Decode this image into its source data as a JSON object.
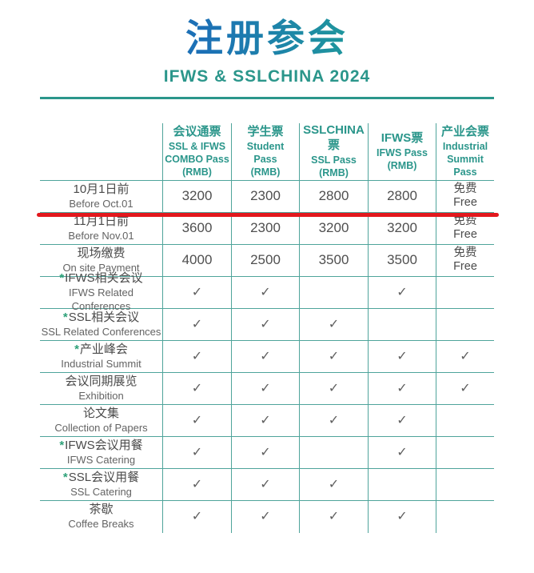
{
  "page": {
    "title": "注册参会",
    "subtitle": "IFWS & SSLCHINA 2024"
  },
  "colors": {
    "title_gradient_start": "#1C70B6",
    "title_gradient_end": "#2EAC87",
    "teal_text": "#2B968B",
    "grid_line": "#4FA49B",
    "red_strike_line": "#E2181D",
    "label_text": "#4A4A4A",
    "secondary_text": "#636363",
    "asterisk": "#2EA179"
  },
  "table": {
    "star_glyph": "*",
    "check_glyph": "✓",
    "header": [
      {
        "zh": "会议通票",
        "en": "SSL & IFWS\nCOMBO Pass\n(RMB)"
      },
      {
        "zh": "学生票",
        "en": "Student\nPass\n(RMB)"
      },
      {
        "zh": "SSLCHINA\n票",
        "en": "SSL Pass\n(RMB)"
      },
      {
        "zh": "IFWS票",
        "en": "IFWS Pass\n(RMB)"
      },
      {
        "zh": "产业会票",
        "en": "Industrial\nSummit\nPass"
      }
    ],
    "rows": [
      {
        "star": false,
        "strike": true,
        "zh": "10月1日前",
        "en": "Before Oct.01",
        "cells": [
          "3200",
          "2300",
          "2800",
          "2800",
          "免费\nFree"
        ]
      },
      {
        "star": false,
        "strike": false,
        "zh": "11月1日前",
        "en": "Before Nov.01",
        "cells": [
          "3600",
          "2300",
          "3200",
          "3200",
          "免费\nFree"
        ]
      },
      {
        "star": false,
        "strike": false,
        "zh": "现场缴费",
        "en": "On site Payment",
        "cells": [
          "4000",
          "2500",
          "3500",
          "3500",
          "免费\nFree"
        ]
      },
      {
        "star": true,
        "strike": false,
        "zh": "IFWS相关会议",
        "en": "IFWS Related Conferences",
        "cells": [
          "✓",
          "✓",
          "",
          "✓",
          ""
        ]
      },
      {
        "star": true,
        "strike": false,
        "zh": "SSL相关会议",
        "en": "SSL Related Conferences",
        "cells": [
          "✓",
          "✓",
          "✓",
          "",
          ""
        ]
      },
      {
        "star": true,
        "strike": false,
        "zh": "产业峰会",
        "en": "Industrial Summit",
        "cells": [
          "✓",
          "✓",
          "✓",
          "✓",
          "✓"
        ]
      },
      {
        "star": false,
        "strike": false,
        "zh": "会议同期展览",
        "en": "Exhibition",
        "cells": [
          "✓",
          "✓",
          "✓",
          "✓",
          "✓"
        ]
      },
      {
        "star": false,
        "strike": false,
        "zh": "论文集",
        "en": "Collection of Papers",
        "cells": [
          "✓",
          "✓",
          "✓",
          "✓",
          ""
        ]
      },
      {
        "star": true,
        "strike": false,
        "zh": "IFWS会议用餐",
        "en": "IFWS Catering",
        "cells": [
          "✓",
          "✓",
          "",
          "✓",
          ""
        ]
      },
      {
        "star": true,
        "strike": false,
        "zh": "SSL会议用餐",
        "en": "SSL Catering",
        "cells": [
          "✓",
          "✓",
          "✓",
          "",
          ""
        ]
      },
      {
        "star": false,
        "strike": false,
        "zh": "茶歇",
        "en": "Coffee Breaks",
        "cells": [
          "✓",
          "✓",
          "✓",
          "✓",
          ""
        ]
      }
    ]
  }
}
